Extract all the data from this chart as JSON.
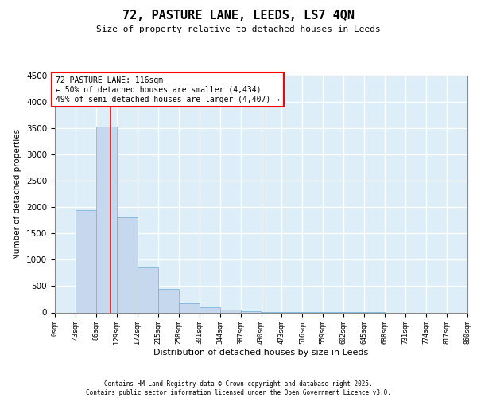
{
  "title": "72, PASTURE LANE, LEEDS, LS7 4QN",
  "subtitle": "Size of property relative to detached houses in Leeds",
  "xlabel": "Distribution of detached houses by size in Leeds",
  "ylabel": "Number of detached properties",
  "bin_edges": [
    0,
    43,
    86,
    129,
    172,
    215,
    258,
    301,
    344,
    387,
    430,
    473,
    516,
    559,
    602,
    645,
    688,
    731,
    774,
    817,
    860
  ],
  "bar_heights": [
    0,
    1950,
    3530,
    1810,
    860,
    440,
    170,
    105,
    55,
    30,
    10,
    5,
    3,
    2,
    1,
    1,
    0,
    0,
    0,
    0
  ],
  "bar_color": "#c5d8ed",
  "bar_edgecolor": "#6baed6",
  "vline_x": 116,
  "vline_color": "red",
  "ylim": [
    0,
    4500
  ],
  "yticks": [
    0,
    500,
    1000,
    1500,
    2000,
    2500,
    3000,
    3500,
    4000,
    4500
  ],
  "annotation_text": "72 PASTURE LANE: 116sqm\n← 50% of detached houses are smaller (4,434)\n49% of semi-detached houses are larger (4,407) →",
  "annotation_box_color": "white",
  "annotation_box_edgecolor": "red",
  "footer_line1": "Contains HM Land Registry data © Crown copyright and database right 2025.",
  "footer_line2": "Contains public sector information licensed under the Open Government Licence v3.0.",
  "background_color": "#ddeef8",
  "grid_color": "white",
  "tick_labels": [
    "0sqm",
    "43sqm",
    "86sqm",
    "129sqm",
    "172sqm",
    "215sqm",
    "258sqm",
    "301sqm",
    "344sqm",
    "387sqm",
    "430sqm",
    "473sqm",
    "516sqm",
    "559sqm",
    "602sqm",
    "645sqm",
    "688sqm",
    "731sqm",
    "774sqm",
    "817sqm",
    "860sqm"
  ],
  "title_fontsize": 11,
  "subtitle_fontsize": 8,
  "ylabel_fontsize": 7.5,
  "xlabel_fontsize": 8,
  "ytick_fontsize": 7.5,
  "xtick_fontsize": 6,
  "ann_fontsize": 7,
  "footer_fontsize": 5.5
}
